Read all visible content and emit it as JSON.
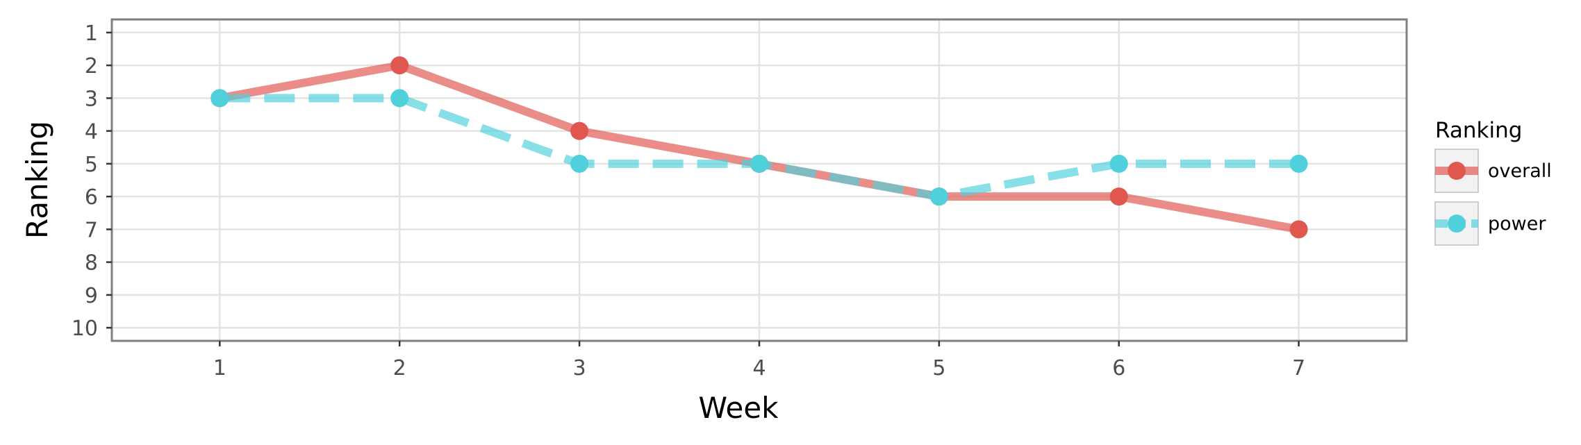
{
  "chart_data": {
    "type": "line",
    "xlabel": "Week",
    "ylabel": "Ranking",
    "x": [
      1,
      2,
      3,
      4,
      5,
      6,
      7
    ],
    "xlim": [
      0.4,
      7.6
    ],
    "ylim": [
      10.4,
      0.6
    ],
    "y_reversed": true,
    "x_ticks": [
      "1",
      "2",
      "3",
      "4",
      "5",
      "6",
      "7"
    ],
    "y_ticks": [
      "1",
      "2",
      "3",
      "4",
      "5",
      "6",
      "7",
      "8",
      "9",
      "10"
    ],
    "grid": true,
    "legend": {
      "title": "Ranking",
      "position": "right"
    },
    "series": [
      {
        "name": "overall",
        "values": [
          3,
          2,
          4,
          5,
          6,
          6,
          7
        ],
        "color": "#e0574f",
        "line_style": "solid"
      },
      {
        "name": "power",
        "values": [
          3,
          3,
          5,
          5,
          6,
          5,
          5
        ],
        "color": "#4fd0db",
        "line_style": "dashed"
      }
    ]
  }
}
